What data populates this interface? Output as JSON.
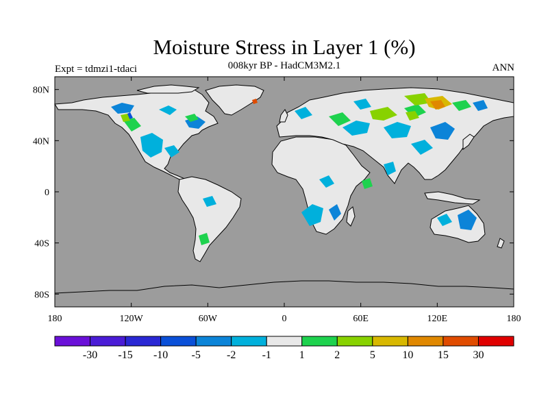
{
  "title": "Moisture Stress in Layer 1 (%)",
  "subtitle": "008kyr BP - HadCM3M2.1",
  "left_label": "Expt = tdmzi1-tdaci",
  "right_label": "ANN",
  "colors": {
    "ocean": "#9c9c9c",
    "land": "#e8e8e8",
    "coast": "#000000"
  },
  "map": {
    "lon_range": [
      -180,
      180
    ],
    "lat_range": [
      -90,
      90
    ],
    "x_ticks": [
      {
        "lon": -180,
        "label": "180"
      },
      {
        "lon": -120,
        "label": "120W"
      },
      {
        "lon": -60,
        "label": "60W"
      },
      {
        "lon": 0,
        "label": "0"
      },
      {
        "lon": 60,
        "label": "60E"
      },
      {
        "lon": 120,
        "label": "120E"
      },
      {
        "lon": 180,
        "label": "180"
      }
    ],
    "y_ticks": [
      {
        "lat": 80,
        "label": "80N"
      },
      {
        "lat": 40,
        "label": "40N"
      },
      {
        "lat": 0,
        "label": "0"
      },
      {
        "lat": -40,
        "label": "40S"
      },
      {
        "lat": -80,
        "label": "80S"
      }
    ]
  },
  "colorbar": {
    "colors": [
      "#6a10d8",
      "#4a1cd6",
      "#2a28d4",
      "#0a50d8",
      "#0c84d8",
      "#00b0dc",
      "#e8e8e8",
      "#1ed24e",
      "#88d200",
      "#d8b800",
      "#e08800",
      "#e04c00",
      "#e00000"
    ],
    "labels": [
      "-30",
      "-15",
      "-10",
      "-5",
      "-2",
      "-1",
      "1",
      "2",
      "5",
      "10",
      "15",
      "30"
    ]
  }
}
